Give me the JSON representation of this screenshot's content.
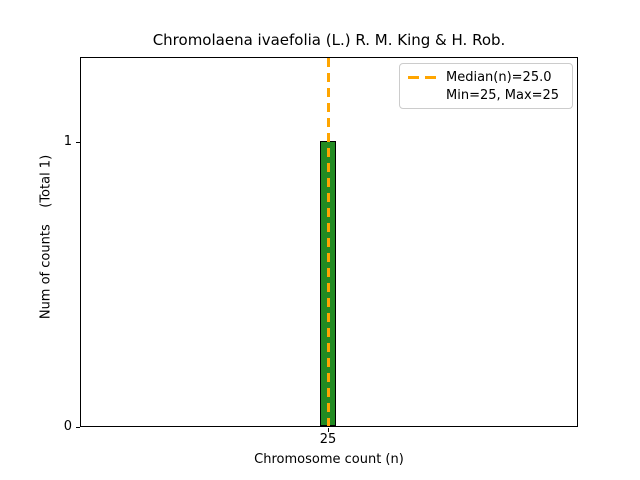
{
  "chart_data": {
    "type": "bar",
    "title": "Chromolaena ivaefolia (L.) R. M. King & H. Rob.",
    "xlabel": "Chromosome count (n)",
    "ylabel": "Num of counts    (Total 1)",
    "categories": [
      25
    ],
    "values": [
      1
    ],
    "total_counts": 1,
    "median": 25.0,
    "min": 25,
    "max": 25,
    "ylim": [
      0,
      1.3
    ],
    "yticks": [
      "0",
      "1"
    ],
    "xticks": [
      "25"
    ],
    "grid": false,
    "legend": {
      "position": "upper right",
      "entries": [
        {
          "label": "Median(n)=25.0",
          "marker": "orange-dashed-line"
        },
        {
          "label": "Min=25, Max=25",
          "marker": "none"
        }
      ]
    },
    "colors": {
      "bar_fill": "#228B22",
      "bar_edge": "#000000",
      "median_line": "#FFA500",
      "background": "#FFFFFF",
      "text": "#000000",
      "legend_border": "#CCCCCC"
    }
  }
}
